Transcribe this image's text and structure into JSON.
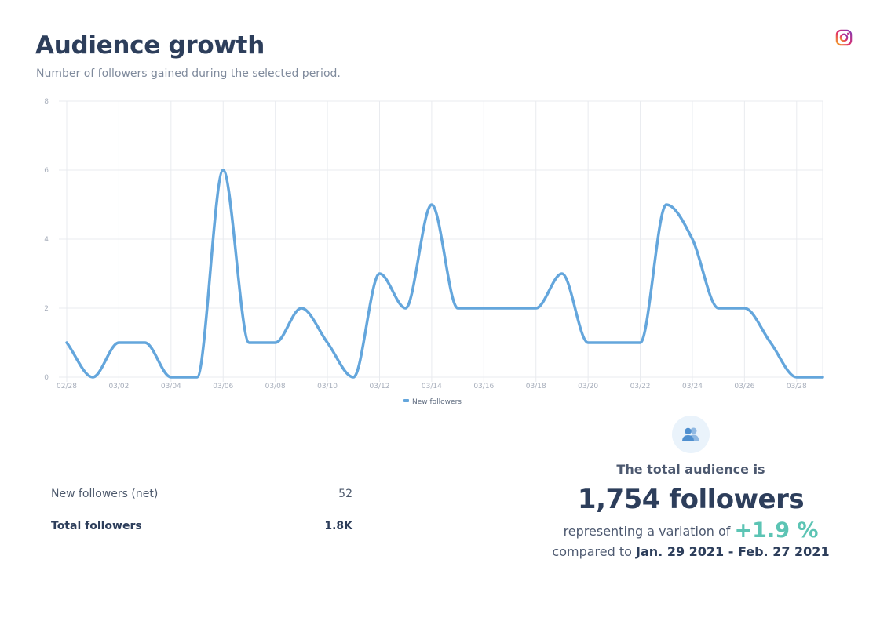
{
  "header": {
    "title": "Audience growth",
    "subtitle": "Number of followers gained during the selected period."
  },
  "icons": {
    "platform": "instagram-icon",
    "summary": "people-icon"
  },
  "colors": {
    "line": "#64a6dc",
    "accent": "#5cc4b4",
    "heading": "#2d3e5b",
    "grid": "#e9ebef"
  },
  "chart_data": {
    "type": "line",
    "title": "",
    "xlabel": "",
    "ylabel": "",
    "ylim": [
      0,
      8
    ],
    "yticks": [
      "0",
      "2",
      "4",
      "6",
      "8"
    ],
    "xticks": [
      "02/28",
      "03/02",
      "03/04",
      "03/06",
      "03/08",
      "03/10",
      "03/12",
      "03/14",
      "03/16",
      "03/18",
      "03/20",
      "03/22",
      "03/24",
      "03/26",
      "03/28"
    ],
    "x": [
      "02/28",
      "03/01",
      "03/02",
      "03/03",
      "03/04",
      "03/05",
      "03/06",
      "03/07",
      "03/08",
      "03/09",
      "03/10",
      "03/11",
      "03/12",
      "03/13",
      "03/14",
      "03/15",
      "03/16",
      "03/17",
      "03/18",
      "03/19",
      "03/20",
      "03/21",
      "03/22",
      "03/23",
      "03/24",
      "03/25",
      "03/26",
      "03/27",
      "03/28",
      "03/29"
    ],
    "grid": true,
    "legend_position": "bottom",
    "series": [
      {
        "name": "New followers",
        "values": [
          1,
          0,
          1,
          1,
          0,
          0,
          6,
          1,
          1,
          2,
          1,
          0,
          3,
          2,
          5,
          2,
          2,
          2,
          2,
          3,
          1,
          1,
          1,
          5,
          4,
          2,
          2,
          1,
          0,
          0
        ]
      }
    ]
  },
  "stats": {
    "rows": [
      {
        "label": "New followers (net)",
        "value": "52"
      },
      {
        "label": "Total followers",
        "value": "1.8K"
      }
    ]
  },
  "summary": {
    "lead": "The total audience is",
    "total": "1,754 followers",
    "variation_prefix": "representing a variation of",
    "variation": "+1.9 %",
    "compare_prefix": "compared to",
    "compare_range": "Jan. 29 2021 - Feb. 27 2021"
  }
}
